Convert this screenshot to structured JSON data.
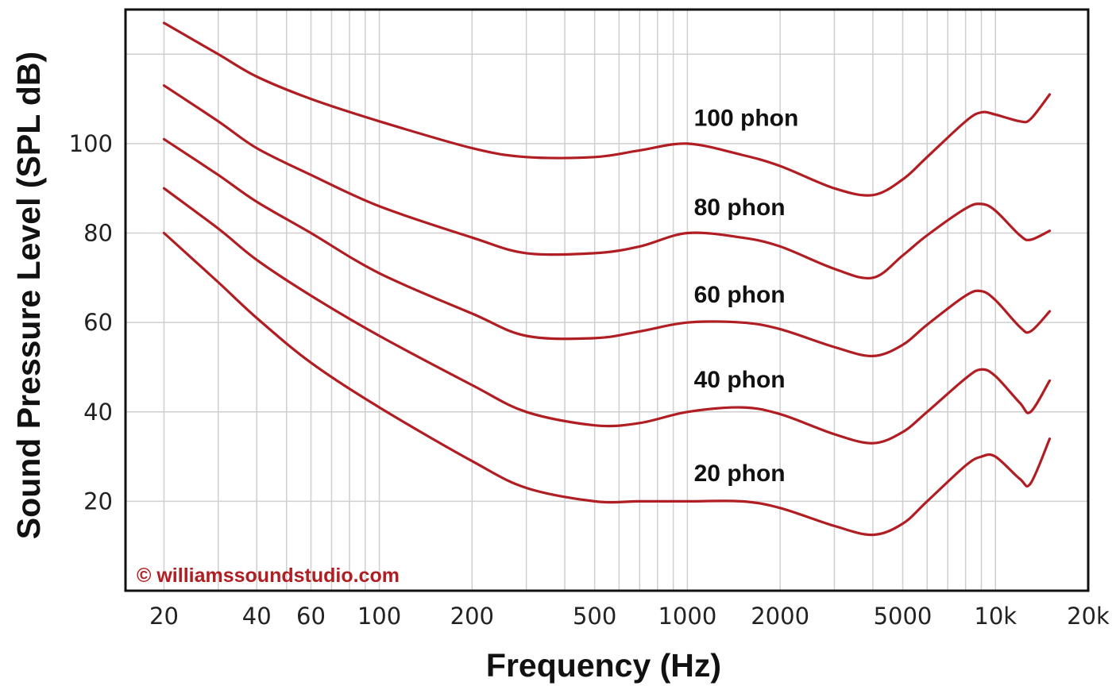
{
  "chart_data": {
    "type": "line",
    "xlabel": "Frequency (Hz)",
    "ylabel": "Sound Pressure Level (SPL dB)",
    "x_scale": "log",
    "xlim": [
      15,
      20000
    ],
    "ylim": [
      0,
      130
    ],
    "grid": true,
    "x_ticks": [
      {
        "value": 20,
        "label": "20"
      },
      {
        "value": 40,
        "label": "40"
      },
      {
        "value": 60,
        "label": "60"
      },
      {
        "value": 100,
        "label": "100"
      },
      {
        "value": 200,
        "label": "200"
      },
      {
        "value": 500,
        "label": "500"
      },
      {
        "value": 1000,
        "label": "1000"
      },
      {
        "value": 2000,
        "label": "2000"
      },
      {
        "value": 5000,
        "label": "5000"
      },
      {
        "value": 10000,
        "label": "10k"
      },
      {
        "value": 20000,
        "label": "20k"
      }
    ],
    "y_ticks": [
      {
        "value": 20,
        "label": "20"
      },
      {
        "value": 40,
        "label": "40"
      },
      {
        "value": 60,
        "label": "60"
      },
      {
        "value": 80,
        "label": "80"
      },
      {
        "value": 100,
        "label": "100"
      }
    ],
    "x_gridlines": [
      20,
      30,
      40,
      50,
      60,
      70,
      80,
      90,
      100,
      200,
      300,
      400,
      500,
      600,
      700,
      800,
      900,
      1000,
      2000,
      3000,
      4000,
      5000,
      6000,
      7000,
      8000,
      9000,
      10000,
      20000
    ],
    "y_gridlines": [
      20,
      40,
      60,
      80,
      100,
      120
    ],
    "line_color": "#b01e23",
    "series": [
      {
        "name": "100 phon",
        "label_at": [
          1050,
          104
        ],
        "points": [
          [
            20,
            127
          ],
          [
            30,
            120
          ],
          [
            40,
            115
          ],
          [
            60,
            110
          ],
          [
            100,
            105
          ],
          [
            200,
            99
          ],
          [
            300,
            97
          ],
          [
            500,
            97
          ],
          [
            700,
            98.5
          ],
          [
            1000,
            100
          ],
          [
            1500,
            97.5
          ],
          [
            2000,
            95
          ],
          [
            3000,
            90
          ],
          [
            4000,
            88.5
          ],
          [
            5000,
            92
          ],
          [
            6000,
            97
          ],
          [
            8000,
            105
          ],
          [
            9000,
            107
          ],
          [
            10000,
            106.5
          ],
          [
            12000,
            105
          ],
          [
            13000,
            105.5
          ],
          [
            15000,
            111
          ]
        ]
      },
      {
        "name": "80 phon",
        "label_at": [
          1050,
          84
        ],
        "points": [
          [
            20,
            113
          ],
          [
            30,
            105
          ],
          [
            40,
            99
          ],
          [
            60,
            93
          ],
          [
            100,
            86
          ],
          [
            200,
            79
          ],
          [
            300,
            75.5
          ],
          [
            500,
            75.5
          ],
          [
            700,
            77
          ],
          [
            1000,
            80
          ],
          [
            1500,
            79
          ],
          [
            2000,
            77
          ],
          [
            3000,
            72
          ],
          [
            4000,
            70
          ],
          [
            5000,
            75
          ],
          [
            6000,
            79.5
          ],
          [
            8000,
            85.5
          ],
          [
            9000,
            86.5
          ],
          [
            10000,
            85
          ],
          [
            12000,
            79.5
          ],
          [
            13000,
            78.5
          ],
          [
            15000,
            80.5
          ]
        ]
      },
      {
        "name": "60 phon",
        "label_at": [
          1050,
          64.5
        ],
        "points": [
          [
            20,
            101
          ],
          [
            30,
            93
          ],
          [
            40,
            87
          ],
          [
            60,
            80
          ],
          [
            100,
            71
          ],
          [
            200,
            62
          ],
          [
            300,
            57
          ],
          [
            500,
            56.5
          ],
          [
            700,
            58
          ],
          [
            1000,
            60
          ],
          [
            1500,
            60
          ],
          [
            2000,
            58.5
          ],
          [
            3000,
            54.5
          ],
          [
            4000,
            52.5
          ],
          [
            5000,
            55
          ],
          [
            6000,
            59.5
          ],
          [
            8000,
            66
          ],
          [
            9000,
            67
          ],
          [
            10000,
            65
          ],
          [
            12000,
            59
          ],
          [
            13000,
            58
          ],
          [
            15000,
            62.5
          ]
        ]
      },
      {
        "name": "40 phon",
        "label_at": [
          1050,
          45.5
        ],
        "points": [
          [
            20,
            90
          ],
          [
            30,
            81
          ],
          [
            40,
            74
          ],
          [
            60,
            66
          ],
          [
            100,
            57
          ],
          [
            200,
            46
          ],
          [
            300,
            40
          ],
          [
            500,
            37
          ],
          [
            700,
            37.5
          ],
          [
            1000,
            40
          ],
          [
            1500,
            41
          ],
          [
            2000,
            39.5
          ],
          [
            3000,
            35
          ],
          [
            4000,
            33
          ],
          [
            5000,
            35.5
          ],
          [
            6000,
            40
          ],
          [
            8000,
            47.5
          ],
          [
            9000,
            49.5
          ],
          [
            10000,
            48
          ],
          [
            12000,
            42
          ],
          [
            13000,
            40
          ],
          [
            15000,
            47
          ]
        ]
      },
      {
        "name": "20 phon",
        "label_at": [
          1050,
          24.5
        ],
        "points": [
          [
            20,
            80
          ],
          [
            30,
            69
          ],
          [
            40,
            61
          ],
          [
            60,
            51
          ],
          [
            100,
            41
          ],
          [
            200,
            29
          ],
          [
            300,
            23
          ],
          [
            500,
            20
          ],
          [
            700,
            20
          ],
          [
            1000,
            20
          ],
          [
            1500,
            20
          ],
          [
            2000,
            18.5
          ],
          [
            3000,
            14.5
          ],
          [
            4000,
            12.5
          ],
          [
            5000,
            15
          ],
          [
            6000,
            20
          ],
          [
            8000,
            28
          ],
          [
            9000,
            30
          ],
          [
            10000,
            30
          ],
          [
            12000,
            25
          ],
          [
            13000,
            24
          ],
          [
            15000,
            34
          ]
        ]
      }
    ]
  },
  "watermark": {
    "text": "© williamssoundstudio.com",
    "color": "#b01e23"
  }
}
